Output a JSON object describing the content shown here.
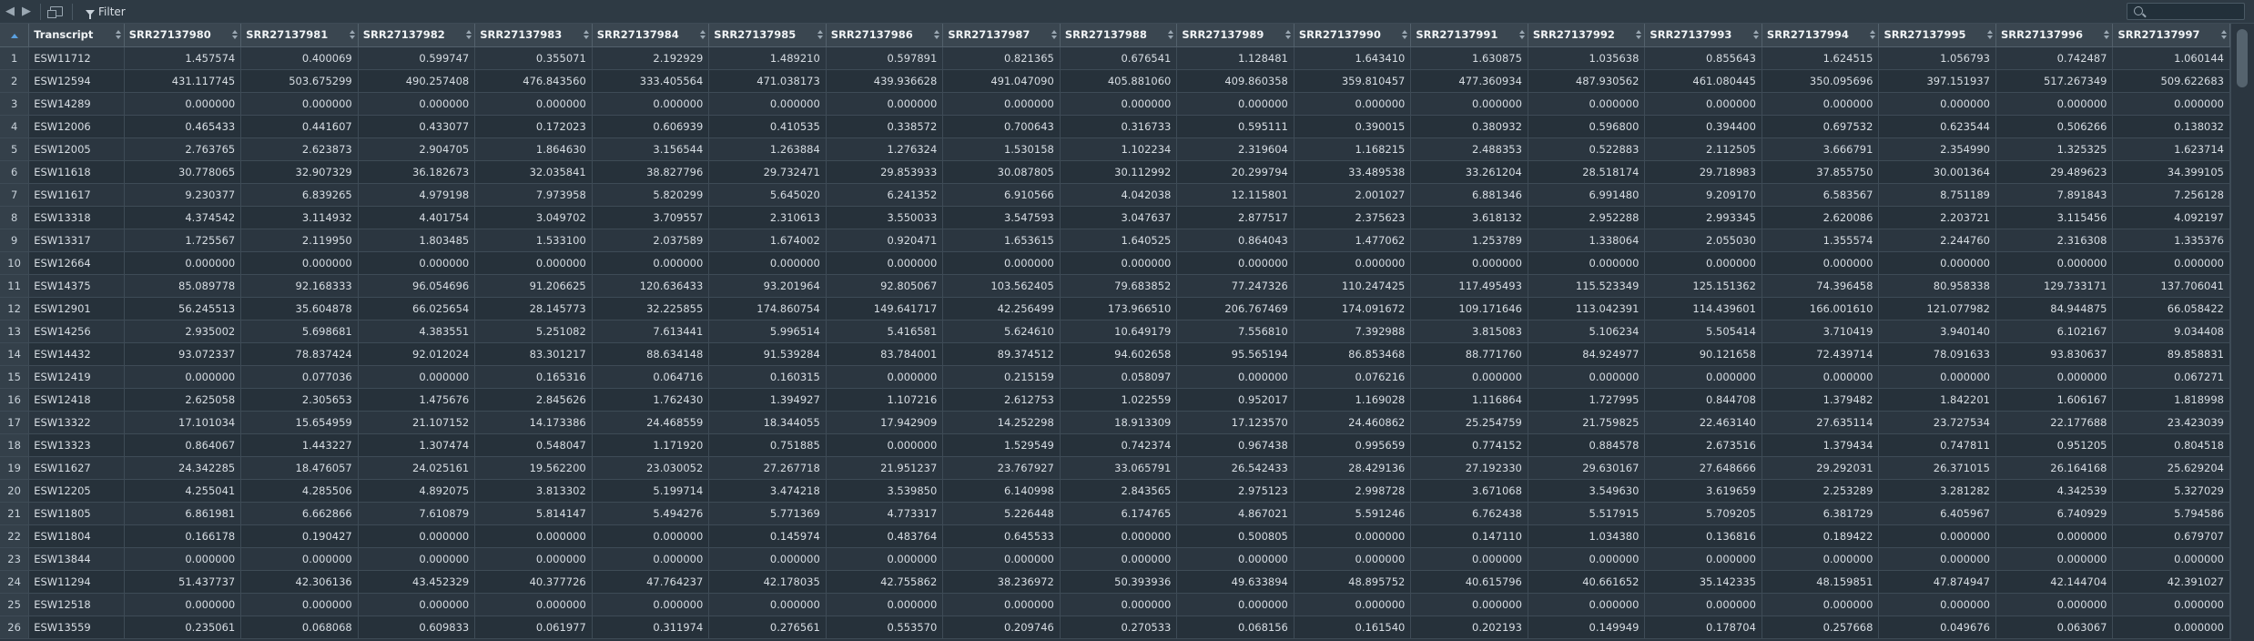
{
  "toolbar": {
    "back_icon": "arrow-left-icon",
    "forward_icon": "arrow-right-icon",
    "popout_icon": "popout-window-icon",
    "filter_label": "Filter",
    "search_placeholder": ""
  },
  "table": {
    "header_transcript": "Transcript",
    "columns": [
      "SRR27137980",
      "SRR27137981",
      "SRR27137982",
      "SRR27137983",
      "SRR27137984",
      "SRR27137985",
      "SRR27137986",
      "SRR27137987",
      "SRR27137988",
      "SRR27137989",
      "SRR27137990",
      "SRR27137991",
      "SRR27137992",
      "SRR27137993",
      "SRR27137994",
      "SRR27137995",
      "SRR27137996",
      "SRR27137997"
    ],
    "rows": [
      {
        "n": "1",
        "id": "ESW11712",
        "v": [
          "1.457574",
          "0.400069",
          "0.599747",
          "0.355071",
          "2.192929",
          "1.489210",
          "0.597891",
          "0.821365",
          "0.676541",
          "1.128481",
          "1.643410",
          "1.630875",
          "1.035638",
          "0.855643",
          "1.624515",
          "1.056793",
          "0.742487",
          "1.060144"
        ]
      },
      {
        "n": "2",
        "id": "ESW12594",
        "v": [
          "431.117745",
          "503.675299",
          "490.257408",
          "476.843560",
          "333.405564",
          "471.038173",
          "439.936628",
          "491.047090",
          "405.881060",
          "409.860358",
          "359.810457",
          "477.360934",
          "487.930562",
          "461.080445",
          "350.095696",
          "397.151937",
          "517.267349",
          "509.622683"
        ]
      },
      {
        "n": "3",
        "id": "ESW14289",
        "v": [
          "0.000000",
          "0.000000",
          "0.000000",
          "0.000000",
          "0.000000",
          "0.000000",
          "0.000000",
          "0.000000",
          "0.000000",
          "0.000000",
          "0.000000",
          "0.000000",
          "0.000000",
          "0.000000",
          "0.000000",
          "0.000000",
          "0.000000",
          "0.000000"
        ]
      },
      {
        "n": "4",
        "id": "ESW12006",
        "v": [
          "0.465433",
          "0.441607",
          "0.433077",
          "0.172023",
          "0.606939",
          "0.410535",
          "0.338572",
          "0.700643",
          "0.316733",
          "0.595111",
          "0.390015",
          "0.380932",
          "0.596800",
          "0.394400",
          "0.697532",
          "0.623544",
          "0.506266",
          "0.138032"
        ]
      },
      {
        "n": "5",
        "id": "ESW12005",
        "v": [
          "2.763765",
          "2.623873",
          "2.904705",
          "1.864630",
          "3.156544",
          "1.263884",
          "1.276324",
          "1.530158",
          "1.102234",
          "2.319604",
          "1.168215",
          "2.488353",
          "0.522883",
          "2.112505",
          "3.666791",
          "2.354990",
          "1.325325",
          "1.623714"
        ]
      },
      {
        "n": "6",
        "id": "ESW11618",
        "v": [
          "30.778065",
          "32.907329",
          "36.182673",
          "32.035841",
          "38.827796",
          "29.732471",
          "29.853933",
          "30.087805",
          "30.112992",
          "20.299794",
          "33.489538",
          "33.261204",
          "28.518174",
          "29.718983",
          "37.855750",
          "30.001364",
          "29.489623",
          "34.399105"
        ]
      },
      {
        "n": "7",
        "id": "ESW11617",
        "v": [
          "9.230377",
          "6.839265",
          "4.979198",
          "7.973958",
          "5.820299",
          "5.645020",
          "6.241352",
          "6.910566",
          "4.042038",
          "12.115801",
          "2.001027",
          "6.881346",
          "6.991480",
          "9.209170",
          "6.583567",
          "8.751189",
          "7.891843",
          "7.256128"
        ]
      },
      {
        "n": "8",
        "id": "ESW13318",
        "v": [
          "4.374542",
          "3.114932",
          "4.401754",
          "3.049702",
          "3.709557",
          "2.310613",
          "3.550033",
          "3.547593",
          "3.047637",
          "2.877517",
          "2.375623",
          "3.618132",
          "2.952288",
          "2.993345",
          "2.620086",
          "2.203721",
          "3.115456",
          "4.092197"
        ]
      },
      {
        "n": "9",
        "id": "ESW13317",
        "v": [
          "1.725567",
          "2.119950",
          "1.803485",
          "1.533100",
          "2.037589",
          "1.674002",
          "0.920471",
          "1.653615",
          "1.640525",
          "0.864043",
          "1.477062",
          "1.253789",
          "1.338064",
          "2.055030",
          "1.355574",
          "2.244760",
          "2.316308",
          "1.335376"
        ]
      },
      {
        "n": "10",
        "id": "ESW12664",
        "v": [
          "0.000000",
          "0.000000",
          "0.000000",
          "0.000000",
          "0.000000",
          "0.000000",
          "0.000000",
          "0.000000",
          "0.000000",
          "0.000000",
          "0.000000",
          "0.000000",
          "0.000000",
          "0.000000",
          "0.000000",
          "0.000000",
          "0.000000",
          "0.000000"
        ]
      },
      {
        "n": "11",
        "id": "ESW14375",
        "v": [
          "85.089778",
          "92.168333",
          "96.054696",
          "91.206625",
          "120.636433",
          "93.201964",
          "92.805067",
          "103.562405",
          "79.683852",
          "77.247326",
          "110.247425",
          "117.495493",
          "115.523349",
          "125.151362",
          "74.396458",
          "80.958338",
          "129.733171",
          "137.706041"
        ]
      },
      {
        "n": "12",
        "id": "ESW12901",
        "v": [
          "56.245513",
          "35.604878",
          "66.025654",
          "28.145773",
          "32.225855",
          "174.860754",
          "149.641717",
          "42.256499",
          "173.966510",
          "206.767469",
          "174.091672",
          "109.171646",
          "113.042391",
          "114.439601",
          "166.001610",
          "121.077982",
          "84.944875",
          "66.058422"
        ]
      },
      {
        "n": "13",
        "id": "ESW14256",
        "v": [
          "2.935002",
          "5.698681",
          "4.383551",
          "5.251082",
          "7.613441",
          "5.996514",
          "5.416581",
          "5.624610",
          "10.649179",
          "7.556810",
          "7.392988",
          "3.815083",
          "5.106234",
          "5.505414",
          "3.710419",
          "3.940140",
          "6.102167",
          "9.034408"
        ]
      },
      {
        "n": "14",
        "id": "ESW14432",
        "v": [
          "93.072337",
          "78.837424",
          "92.012024",
          "83.301217",
          "88.634148",
          "91.539284",
          "83.784001",
          "89.374512",
          "94.602658",
          "95.565194",
          "86.853468",
          "88.771760",
          "84.924977",
          "90.121658",
          "72.439714",
          "78.091633",
          "93.830637",
          "89.858831"
        ]
      },
      {
        "n": "15",
        "id": "ESW12419",
        "v": [
          "0.000000",
          "0.077036",
          "0.000000",
          "0.165316",
          "0.064716",
          "0.160315",
          "0.000000",
          "0.215159",
          "0.058097",
          "0.000000",
          "0.076216",
          "0.000000",
          "0.000000",
          "0.000000",
          "0.000000",
          "0.000000",
          "0.000000",
          "0.067271"
        ]
      },
      {
        "n": "16",
        "id": "ESW12418",
        "v": [
          "2.625058",
          "2.305653",
          "1.475676",
          "2.845626",
          "1.762430",
          "1.394927",
          "1.107216",
          "2.612753",
          "1.022559",
          "0.952017",
          "1.169028",
          "1.116864",
          "1.727995",
          "0.844708",
          "1.379482",
          "1.842201",
          "1.606167",
          "1.818998"
        ]
      },
      {
        "n": "17",
        "id": "ESW13322",
        "v": [
          "17.101034",
          "15.654959",
          "21.107152",
          "14.173386",
          "24.468559",
          "18.344055",
          "17.942909",
          "14.252298",
          "18.913309",
          "17.123570",
          "24.460862",
          "25.254759",
          "21.759825",
          "22.463140",
          "27.635114",
          "23.727534",
          "22.177688",
          "23.423039"
        ]
      },
      {
        "n": "18",
        "id": "ESW13323",
        "v": [
          "0.864067",
          "1.443227",
          "1.307474",
          "0.548047",
          "1.171920",
          "0.751885",
          "0.000000",
          "1.529549",
          "0.742374",
          "0.967438",
          "0.995659",
          "0.774152",
          "0.884578",
          "2.673516",
          "1.379434",
          "0.747811",
          "0.951205",
          "0.804518"
        ]
      },
      {
        "n": "19",
        "id": "ESW11627",
        "v": [
          "24.342285",
          "18.476057",
          "24.025161",
          "19.562200",
          "23.030052",
          "27.267718",
          "21.951237",
          "23.767927",
          "33.065791",
          "26.542433",
          "28.429136",
          "27.192330",
          "29.630167",
          "27.648666",
          "29.292031",
          "26.371015",
          "26.164168",
          "25.629204"
        ]
      },
      {
        "n": "20",
        "id": "ESW12205",
        "v": [
          "4.255041",
          "4.285506",
          "4.892075",
          "3.813302",
          "5.199714",
          "3.474218",
          "3.539850",
          "6.140998",
          "2.843565",
          "2.975123",
          "2.998728",
          "3.671068",
          "3.549630",
          "3.619659",
          "2.253289",
          "3.281282",
          "4.342539",
          "5.327029"
        ]
      },
      {
        "n": "21",
        "id": "ESW11805",
        "v": [
          "6.861981",
          "6.662866",
          "7.610879",
          "5.814147",
          "5.494276",
          "5.771369",
          "4.773317",
          "5.226448",
          "6.174765",
          "4.867021",
          "5.591246",
          "6.762438",
          "5.517915",
          "5.709205",
          "6.381729",
          "6.405967",
          "6.740929",
          "5.794586"
        ]
      },
      {
        "n": "22",
        "id": "ESW11804",
        "v": [
          "0.166178",
          "0.190427",
          "0.000000",
          "0.000000",
          "0.000000",
          "0.145974",
          "0.483764",
          "0.645533",
          "0.000000",
          "0.500805",
          "0.000000",
          "0.147110",
          "1.034380",
          "0.136816",
          "0.189422",
          "0.000000",
          "0.000000",
          "0.679707"
        ]
      },
      {
        "n": "23",
        "id": "ESW13844",
        "v": [
          "0.000000",
          "0.000000",
          "0.000000",
          "0.000000",
          "0.000000",
          "0.000000",
          "0.000000",
          "0.000000",
          "0.000000",
          "0.000000",
          "0.000000",
          "0.000000",
          "0.000000",
          "0.000000",
          "0.000000",
          "0.000000",
          "0.000000",
          "0.000000"
        ]
      },
      {
        "n": "24",
        "id": "ESW11294",
        "v": [
          "51.437737",
          "42.306136",
          "43.452329",
          "40.377726",
          "47.764237",
          "42.178035",
          "42.755862",
          "38.236972",
          "50.393936",
          "49.633894",
          "48.895752",
          "40.615796",
          "40.661652",
          "35.142335",
          "48.159851",
          "47.874947",
          "42.144704",
          "42.391027"
        ]
      },
      {
        "n": "25",
        "id": "ESW12518",
        "v": [
          "0.000000",
          "0.000000",
          "0.000000",
          "0.000000",
          "0.000000",
          "0.000000",
          "0.000000",
          "0.000000",
          "0.000000",
          "0.000000",
          "0.000000",
          "0.000000",
          "0.000000",
          "0.000000",
          "0.000000",
          "0.000000",
          "0.000000",
          "0.000000"
        ]
      },
      {
        "n": "26",
        "id": "ESW13559",
        "v": [
          "0.235061",
          "0.068068",
          "0.609833",
          "0.061977",
          "0.311974",
          "0.276561",
          "0.553570",
          "0.209746",
          "0.270533",
          "0.068156",
          "0.161540",
          "0.202193",
          "0.149949",
          "0.178704",
          "0.257668",
          "0.049676",
          "0.063067",
          "0.000000"
        ]
      }
    ]
  }
}
